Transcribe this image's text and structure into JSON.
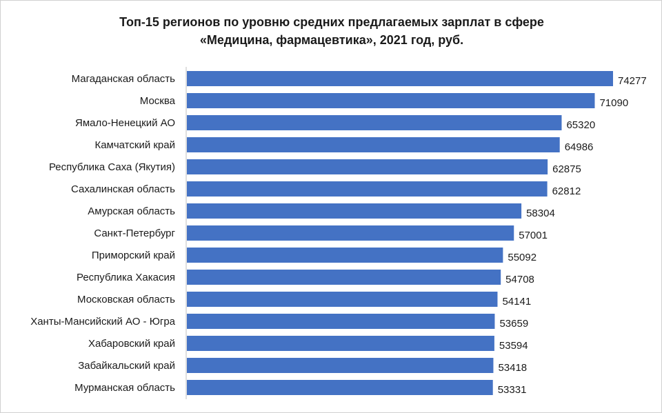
{
  "chart_data": {
    "type": "bar",
    "orientation": "horizontal",
    "title_line1": "Топ-15 регионов по уровню средних предлагаемых зарплат в сфере",
    "title_line2": "«Медицина, фармацевтика», 2021 год, руб.",
    "categories": [
      "Магаданская область",
      "Москва",
      "Ямало-Ненецкий АО",
      "Камчатский край",
      "Республика Саха (Якутия)",
      "Сахалинская область",
      "Амурская область",
      "Санкт-Петербург",
      "Приморский край",
      "Республика Хакасия",
      "Московская область",
      "Ханты-Мансийский АО - Югра",
      "Хабаровский край",
      "Забайкальский край",
      "Мурманская область"
    ],
    "values": [
      74277,
      71090,
      65320,
      64986,
      62875,
      62812,
      58304,
      57001,
      55092,
      54708,
      54141,
      53659,
      53594,
      53418,
      53331
    ],
    "bar_color": "#4472C4",
    "grid": false,
    "legend": "none"
  }
}
